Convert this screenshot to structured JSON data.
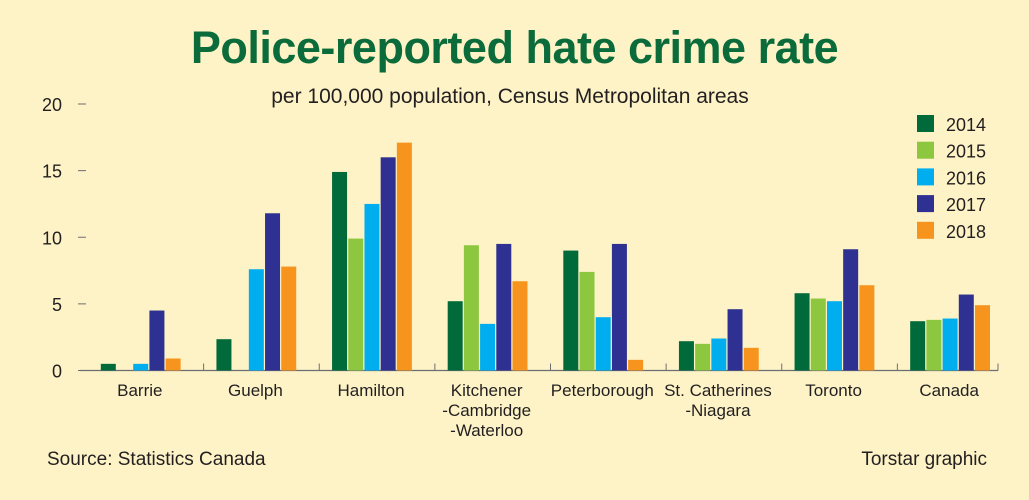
{
  "chart_data": {
    "type": "bar",
    "title": "Police-reported hate crime rate",
    "subtitle": "per 100,000 population, Census Metropolitan areas",
    "categories": [
      [
        "Barrie"
      ],
      [
        "Guelph"
      ],
      [
        "Hamilton"
      ],
      [
        "Kitchener",
        "-Cambridge",
        "-Waterloo"
      ],
      [
        "Peterborough"
      ],
      [
        "St. Catherines",
        "-Niagara"
      ],
      [
        "Toronto"
      ],
      [
        "Canada"
      ]
    ],
    "series": [
      {
        "name": "2014",
        "color": "#006a3a",
        "values": [
          0.5,
          2.35,
          14.9,
          5.2,
          9.0,
          2.2,
          5.8,
          3.7
        ]
      },
      {
        "name": "2015",
        "color": "#8dc63f",
        "values": [
          0,
          0,
          9.9,
          9.4,
          7.4,
          2.0,
          5.4,
          3.8
        ]
      },
      {
        "name": "2016",
        "color": "#00aeef",
        "values": [
          0.5,
          7.6,
          12.5,
          3.5,
          4.0,
          2.4,
          5.2,
          3.9
        ]
      },
      {
        "name": "2017",
        "color": "#2e3192",
        "values": [
          4.5,
          11.8,
          16.0,
          9.5,
          9.5,
          4.6,
          9.1,
          5.7
        ]
      },
      {
        "name": "2018",
        "color": "#f7941d",
        "values": [
          0.9,
          7.8,
          17.1,
          6.7,
          0.8,
          1.7,
          6.4,
          4.9
        ]
      }
    ],
    "xlabel": "",
    "ylabel": "",
    "ylim": [
      0,
      20
    ],
    "yticks": [
      0,
      5,
      10,
      15,
      20
    ],
    "grid": false,
    "legend": "top-right"
  },
  "footer": {
    "source": "Source: Statistics Canada",
    "credit": "Torstar graphic"
  }
}
